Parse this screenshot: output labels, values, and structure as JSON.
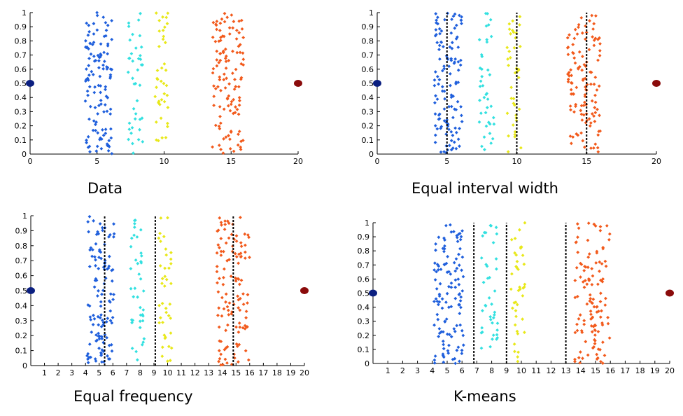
{
  "colors": {
    "cluster_blue": "#1f5fdc",
    "cluster_cyan": "#33e0e0",
    "cluster_yellow": "#e8e81a",
    "cluster_orange": "#f25a1c",
    "endpoint_left": "#0b1f80",
    "endpoint_right": "#8a0b0b",
    "boundary_line": "#000000"
  },
  "chart_data": [
    {
      "type": "scatter",
      "title": "Data",
      "xlim": [
        0,
        20
      ],
      "ylim": [
        0,
        1
      ],
      "x_ticks": [
        0,
        5,
        10,
        15,
        20
      ],
      "y_ticks": [
        0,
        0.1,
        0.2,
        0.3,
        0.4,
        0.5,
        0.6,
        0.7,
        0.8,
        0.9,
        1
      ],
      "boundaries": [],
      "clusters": [
        {
          "color": "cluster_blue",
          "x_min": 4.1,
          "x_max": 6.1,
          "count": 120
        },
        {
          "color": "cluster_cyan",
          "x_min": 7.3,
          "x_max": 8.4,
          "count": 40
        },
        {
          "color": "cluster_yellow",
          "x_min": 9.3,
          "x_max": 10.3,
          "count": 40
        },
        {
          "color": "cluster_orange",
          "x_min": 13.6,
          "x_max": 16.0,
          "count": 120
        }
      ],
      "endpoints": [
        {
          "x": 0,
          "y": 0.5,
          "color": "endpoint_left"
        },
        {
          "x": 20,
          "y": 0.5,
          "color": "endpoint_right"
        }
      ]
    },
    {
      "type": "scatter",
      "title": "Equal interval width",
      "xlim": [
        0,
        20
      ],
      "ylim": [
        0,
        1
      ],
      "x_ticks": [
        0,
        5,
        10,
        15,
        20
      ],
      "y_ticks": [
        0,
        0.1,
        0.2,
        0.3,
        0.4,
        0.5,
        0.6,
        0.7,
        0.8,
        0.9,
        1
      ],
      "boundaries": [
        5,
        10,
        15
      ],
      "clusters": [
        {
          "color": "cluster_blue",
          "x_min": 4.1,
          "x_max": 6.1,
          "count": 120
        },
        {
          "color": "cluster_cyan",
          "x_min": 7.3,
          "x_max": 8.4,
          "count": 40
        },
        {
          "color": "cluster_yellow",
          "x_min": 9.3,
          "x_max": 10.3,
          "count": 40
        },
        {
          "color": "cluster_orange",
          "x_min": 13.6,
          "x_max": 16.0,
          "count": 120
        }
      ],
      "endpoints": [
        {
          "x": 0,
          "y": 0.5,
          "color": "endpoint_left"
        },
        {
          "x": 20,
          "y": 0.5,
          "color": "endpoint_right"
        }
      ]
    },
    {
      "type": "scatter",
      "title": "Equal frequency",
      "xlim": [
        0,
        20
      ],
      "ylim": [
        0,
        1
      ],
      "x_ticks": [
        1,
        2,
        3,
        4,
        5,
        6,
        7,
        8,
        9,
        10,
        11,
        12,
        13,
        14,
        15,
        16,
        17,
        18,
        19,
        20
      ],
      "y_ticks": [
        0,
        0.1,
        0.2,
        0.3,
        0.4,
        0.5,
        0.6,
        0.7,
        0.8,
        0.9,
        1
      ],
      "boundaries": [
        5.4,
        9.1,
        14.8
      ],
      "clusters": [
        {
          "color": "cluster_blue",
          "x_min": 4.1,
          "x_max": 6.1,
          "count": 120
        },
        {
          "color": "cluster_cyan",
          "x_min": 7.3,
          "x_max": 8.4,
          "count": 40
        },
        {
          "color": "cluster_yellow",
          "x_min": 9.3,
          "x_max": 10.3,
          "count": 40
        },
        {
          "color": "cluster_orange",
          "x_min": 13.6,
          "x_max": 16.0,
          "count": 120
        }
      ],
      "endpoints": [
        {
          "x": 0,
          "y": 0.5,
          "color": "endpoint_left"
        },
        {
          "x": 20,
          "y": 0.5,
          "color": "endpoint_right"
        }
      ]
    },
    {
      "type": "scatter",
      "title": "K-means",
      "xlim": [
        0,
        20
      ],
      "ylim": [
        0,
        1
      ],
      "x_ticks": [
        1,
        2,
        3,
        4,
        5,
        6,
        7,
        8,
        9,
        10,
        11,
        12,
        13,
        14,
        15,
        16,
        17,
        18,
        19,
        20
      ],
      "y_ticks": [
        0,
        0.1,
        0.2,
        0.3,
        0.4,
        0.5,
        0.6,
        0.7,
        0.8,
        0.9,
        1
      ],
      "boundaries": [
        6.8,
        9.0,
        13.0
      ],
      "clusters": [
        {
          "color": "cluster_blue",
          "x_min": 4.1,
          "x_max": 6.1,
          "count": 120
        },
        {
          "color": "cluster_cyan",
          "x_min": 7.3,
          "x_max": 8.4,
          "count": 40
        },
        {
          "color": "cluster_yellow",
          "x_min": 9.3,
          "x_max": 10.3,
          "count": 40
        },
        {
          "color": "cluster_orange",
          "x_min": 13.6,
          "x_max": 16.0,
          "count": 120
        }
      ],
      "endpoints": [
        {
          "x": 0,
          "y": 0.5,
          "color": "endpoint_left"
        },
        {
          "x": 20,
          "y": 0.5,
          "color": "endpoint_right"
        }
      ]
    }
  ]
}
